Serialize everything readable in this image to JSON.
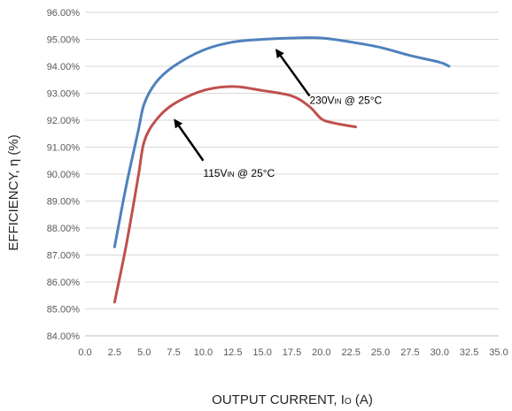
{
  "chart_data": {
    "type": "line",
    "title": "",
    "xlabel": "OUTPUT CURRENT, I",
    "xlabel_sub": "O",
    "xlabel_suffix": " (A)",
    "ylabel": "EFFICIENCY, η  (%)",
    "xlim": [
      0,
      35
    ],
    "ylim": [
      84,
      96
    ],
    "x_ticks": [
      "0.0",
      "2.5",
      "5.0",
      "7.5",
      "10.0",
      "12.5",
      "15.0",
      "17.5",
      "20.0",
      "22.5",
      "25.0",
      "27.5",
      "30.0",
      "32.5",
      "35.0"
    ],
    "y_ticks": [
      "84.00%",
      "85.00%",
      "86.00%",
      "87.00%",
      "88.00%",
      "89.00%",
      "90.00%",
      "91.00%",
      "92.00%",
      "93.00%",
      "94.00%",
      "95.00%",
      "96.00%"
    ],
    "grid": "horizontal",
    "legend": "none",
    "series": [
      {
        "color": "#4F81BD",
        "x": [
          2.5,
          3.5,
          4.5,
          5.0,
          6.0,
          7.5,
          10.0,
          12.5,
          15.0,
          17.5,
          20.0,
          22.5,
          25.0,
          27.5,
          30.0,
          30.8
        ],
        "y": [
          87.3,
          89.6,
          91.6,
          92.6,
          93.4,
          94.0,
          94.6,
          94.9,
          95.0,
          95.05,
          95.05,
          94.9,
          94.7,
          94.4,
          94.15,
          94.0
        ]
      },
      {
        "color": "#C0504D",
        "x": [
          2.5,
          3.5,
          4.5,
          5.0,
          6.0,
          7.5,
          10.0,
          12.5,
          15.0,
          17.5,
          19.0,
          20.0,
          21.0,
          22.9
        ],
        "y": [
          85.25,
          87.4,
          89.9,
          91.2,
          92.0,
          92.6,
          93.1,
          93.25,
          93.1,
          92.9,
          92.5,
          92.05,
          91.9,
          91.75
        ]
      }
    ],
    "annotations": [
      {
        "text_main": "230V",
        "text_sub": "IN",
        "text_rest": " @ 25°C",
        "x": 19.0,
        "y": 92.6,
        "arrow_from": [
          19.0,
          92.9
        ],
        "arrow_to": [
          16.2,
          94.6
        ]
      },
      {
        "text_main": "115V",
        "text_sub": "IN",
        "text_rest": " @ 25°C",
        "x": 10.0,
        "y": 89.9,
        "arrow_from": [
          10.0,
          90.5
        ],
        "arrow_to": [
          7.6,
          92.0
        ]
      }
    ]
  }
}
